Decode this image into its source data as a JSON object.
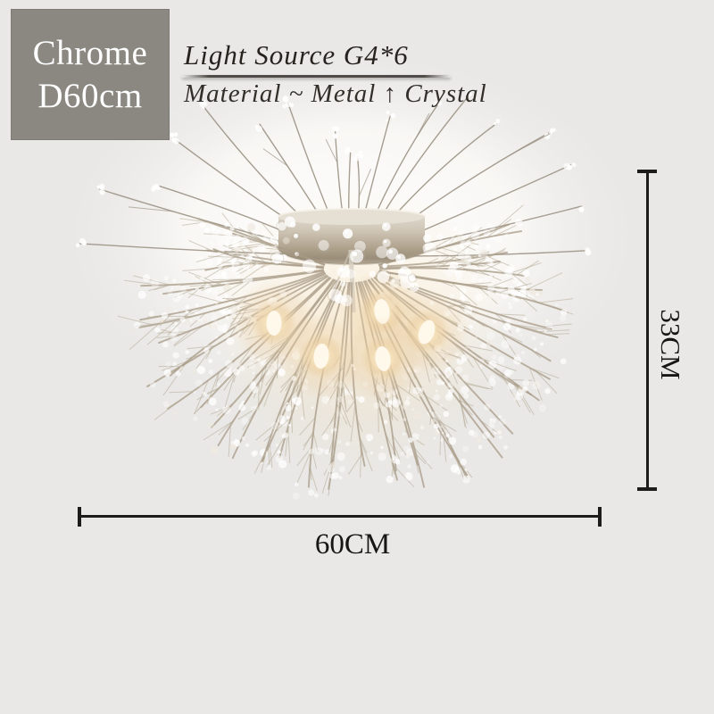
{
  "badge": {
    "finish": "Chrome",
    "size": "D60cm"
  },
  "specs": {
    "light_source": "Light Source G4*6",
    "material": "Material ~ Metal ↑ Crystal"
  },
  "dimensions": {
    "width": "60CM",
    "height": "33CM"
  },
  "image": {
    "name": "dandelion-firework-crystal-flush-ceiling-lamp",
    "lit_bulbs": 5
  },
  "colors": {
    "background": "#e9e8e6",
    "badge_bg": "#8b8882",
    "badge_text": "#ffffff",
    "heading_text": "#26231f",
    "dimension_line": "#1c1c1c",
    "bulb_glow": "#e6c697",
    "metal": "#b3a68f",
    "branch": "#a79a86"
  }
}
